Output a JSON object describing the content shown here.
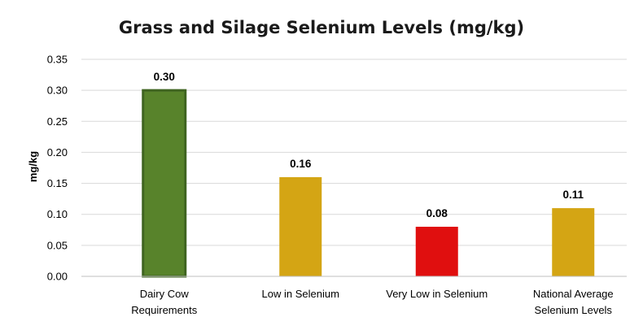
{
  "chart_data": {
    "type": "bar",
    "title": "Grass and Silage Selenium Levels (mg/kg)",
    "ylabel": "mg/kg",
    "xlabel": "",
    "ylim": [
      0,
      0.35
    ],
    "yticks": [
      "0.00",
      "0.05",
      "0.10",
      "0.15",
      "0.20",
      "0.25",
      "0.30",
      "0.35"
    ],
    "grid": true,
    "legend": "none",
    "categories": [
      [
        "Dairy Cow",
        "Requirements"
      ],
      [
        "Low in Selenium"
      ],
      [
        "Very Low in Selenium"
      ],
      [
        "National Average",
        "Selenium Levels"
      ]
    ],
    "values": [
      0.3,
      0.16,
      0.08,
      0.11
    ],
    "data_labels": [
      "0.30",
      "0.16",
      "0.08",
      "0.11"
    ],
    "colors": [
      "#58832b",
      "#d4a514",
      "#e00f0f",
      "#d4a514"
    ],
    "bar_outline_colors": [
      "#3f6420",
      "#d4a514",
      "#e00f0f",
      "#d4a514"
    ]
  }
}
